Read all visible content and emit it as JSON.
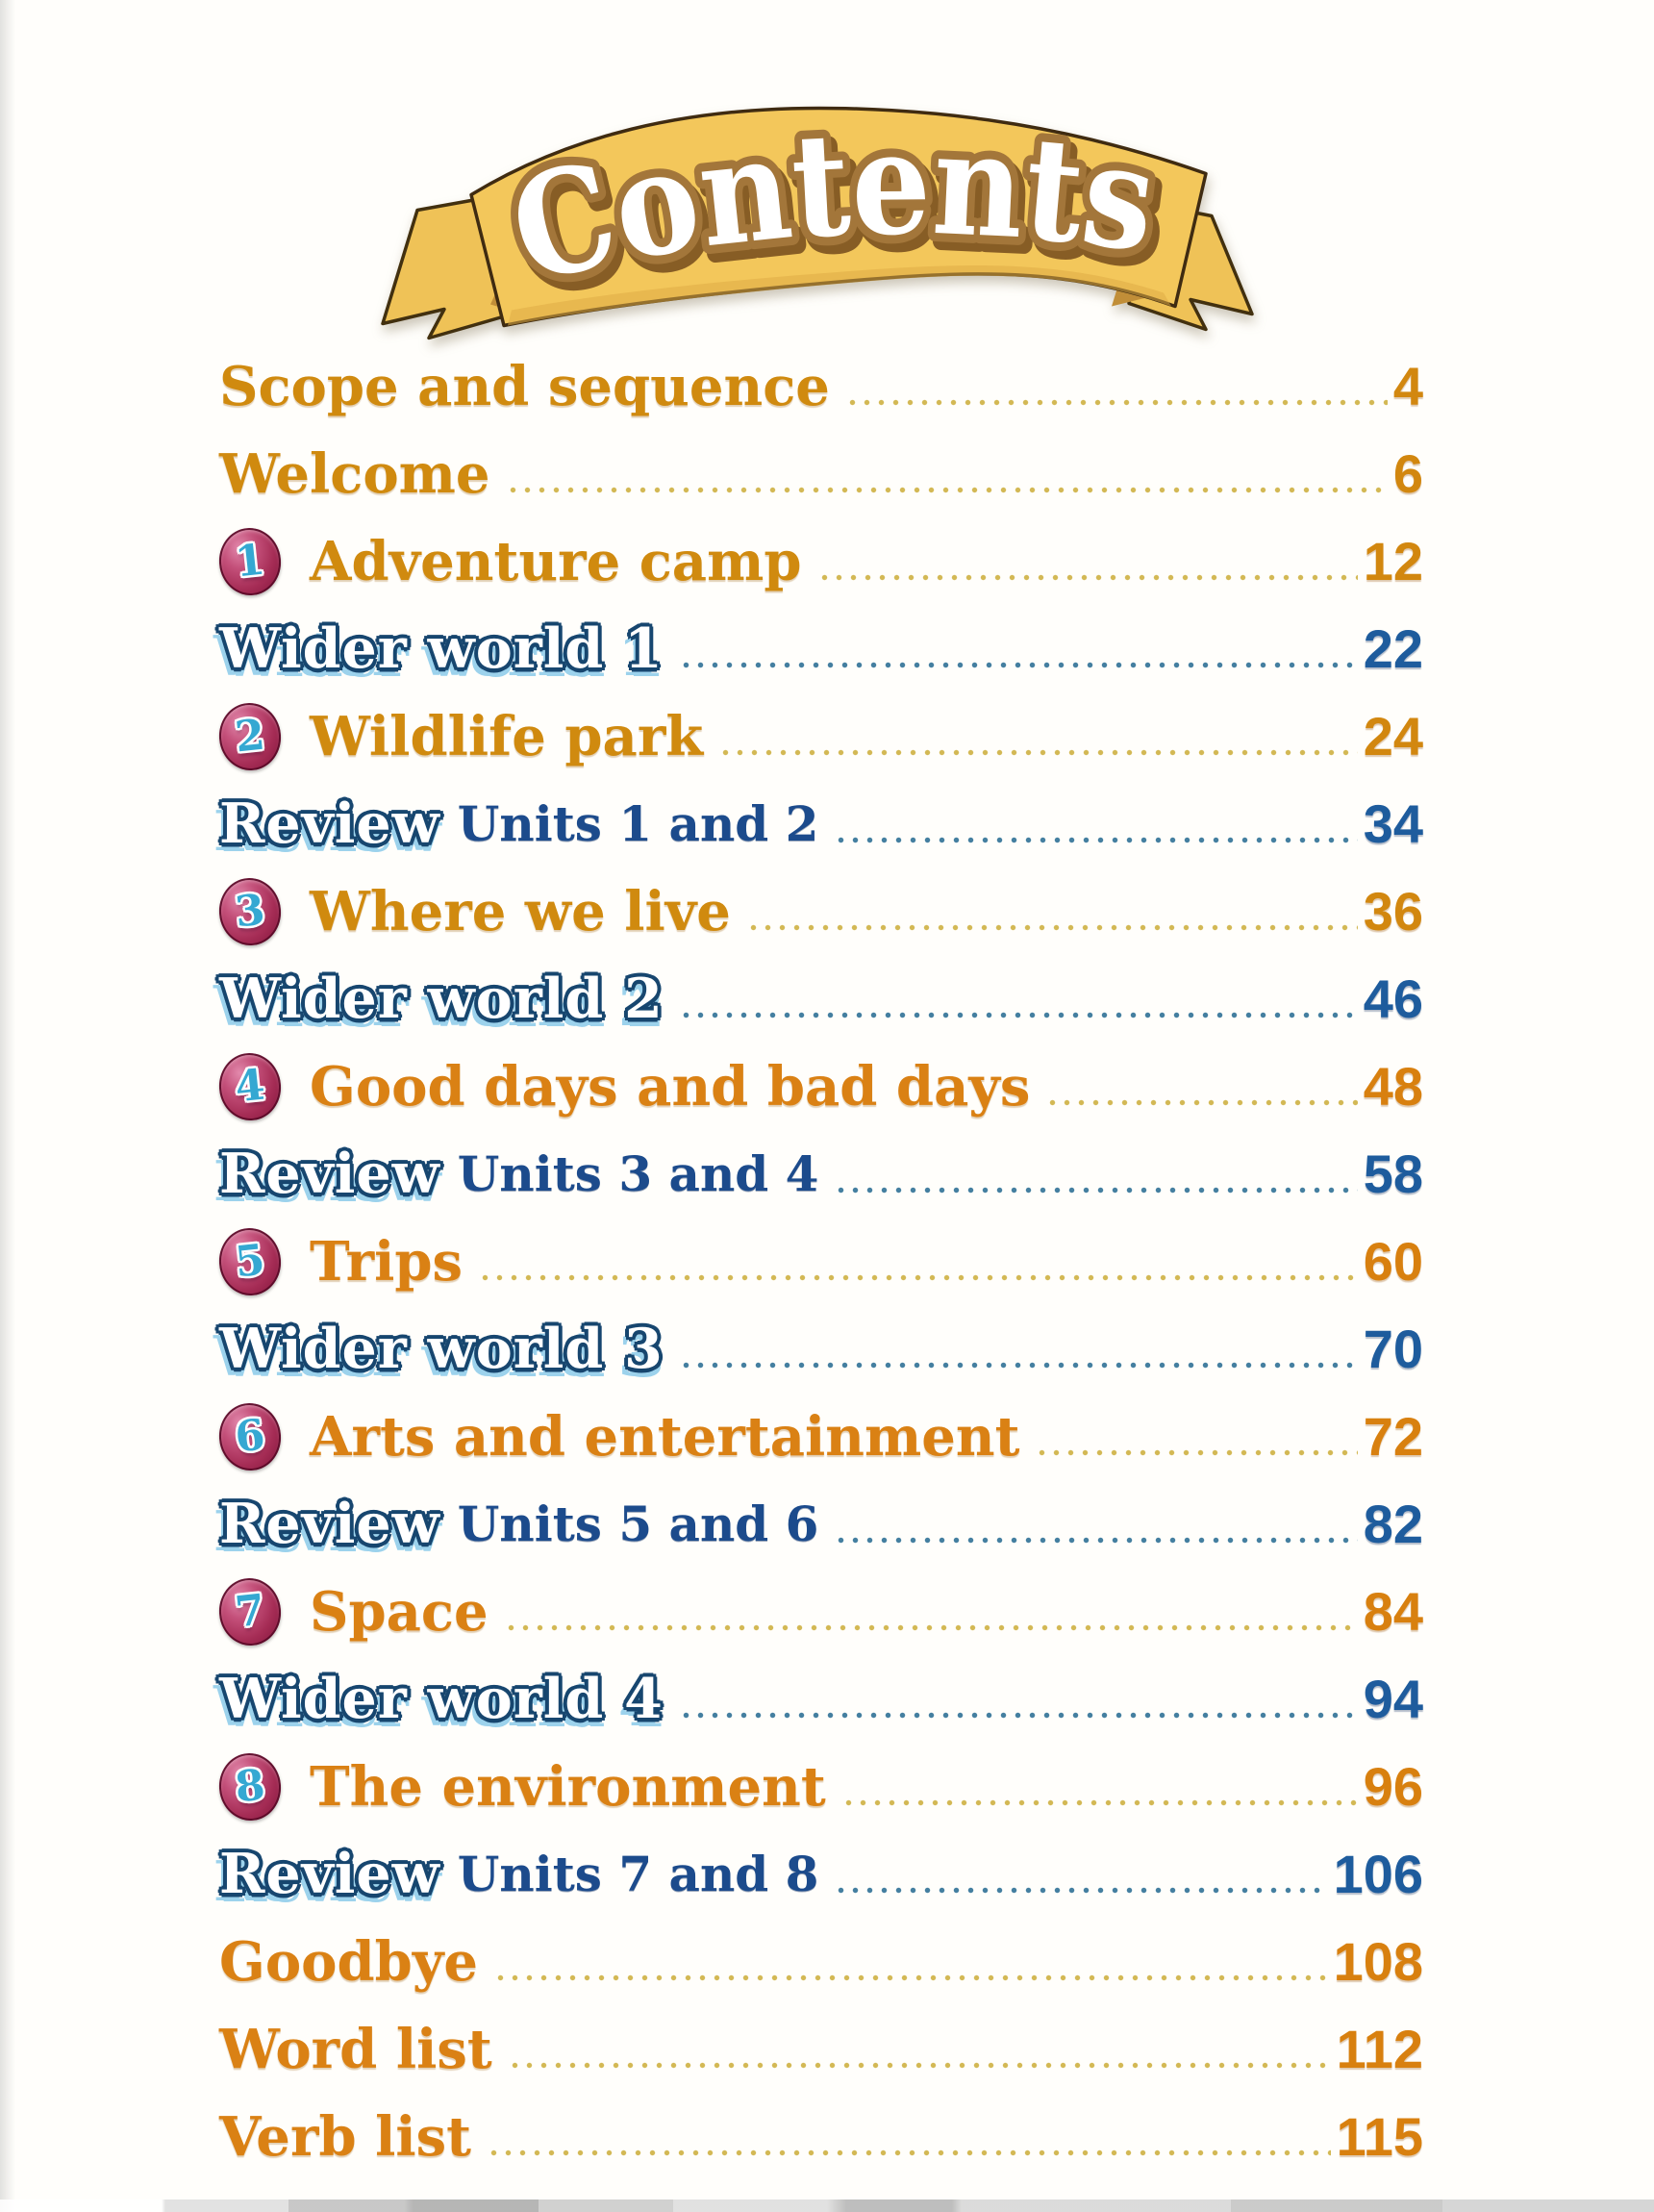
{
  "banner": {
    "title": "Contents"
  },
  "colors": {
    "gold_text": "#D08A0F",
    "orange_text": "#DA8114",
    "navy_text": "#1C4B8C",
    "blue_page": "#1E5C9D",
    "gold_page": "#D2870F",
    "badge_red": "#A52C55",
    "badge_number_blue": "#35A8D2",
    "ribbon_gold": "#F3C75B"
  },
  "toc": {
    "rows": [
      {
        "type": "plain",
        "title": "Scope and sequence",
        "page": "4",
        "palette": "gold"
      },
      {
        "type": "plain",
        "title": "Welcome",
        "page": "6",
        "palette": "gold"
      },
      {
        "type": "unit",
        "badge": "1",
        "title": "Adventure camp",
        "page": "12",
        "palette": "gold"
      },
      {
        "type": "wider",
        "title": "Wider world 1",
        "page": "22",
        "palette": "blue"
      },
      {
        "type": "unit",
        "badge": "2",
        "title": "Wildlife park",
        "page": "24",
        "palette": "gold"
      },
      {
        "type": "review",
        "title": "Review",
        "subtitle": "Units 1 and 2",
        "page": "34",
        "palette": "blue"
      },
      {
        "type": "unit",
        "badge": "3",
        "title": "Where we live",
        "page": "36",
        "palette": "gold"
      },
      {
        "type": "wider",
        "title": "Wider world 2",
        "page": "46",
        "palette": "blue"
      },
      {
        "type": "unit",
        "badge": "4",
        "title": "Good days and bad days",
        "page": "48",
        "palette": "gold"
      },
      {
        "type": "review",
        "title": "Review",
        "subtitle": "Units 3 and 4",
        "page": "58",
        "palette": "blue"
      },
      {
        "type": "unit",
        "badge": "5",
        "title": "Trips",
        "page": "60",
        "palette": "gold"
      },
      {
        "type": "wider",
        "title": "Wider world 3",
        "page": "70",
        "palette": "blue"
      },
      {
        "type": "unit",
        "badge": "6",
        "title": "Arts and entertainment",
        "page": "72",
        "palette": "gold"
      },
      {
        "type": "review",
        "title": "Review",
        "subtitle": "Units 5 and 6",
        "page": "82",
        "palette": "blue"
      },
      {
        "type": "unit",
        "badge": "7",
        "title": "Space",
        "page": "84",
        "palette": "gold"
      },
      {
        "type": "wider",
        "title": "Wider world 4",
        "page": "94",
        "palette": "blue"
      },
      {
        "type": "unit",
        "badge": "8",
        "title": "The environment",
        "page": "96",
        "palette": "gold"
      },
      {
        "type": "review",
        "title": "Review",
        "subtitle": "Units 7 and 8",
        "page": "106",
        "palette": "blue"
      },
      {
        "type": "plain",
        "title": "Goodbye",
        "page": "108",
        "palette": "gold"
      },
      {
        "type": "plain",
        "title": "Word list",
        "page": "112",
        "palette": "gold"
      },
      {
        "type": "plain",
        "title": "Verb list",
        "page": "115",
        "palette": "gold"
      }
    ]
  }
}
